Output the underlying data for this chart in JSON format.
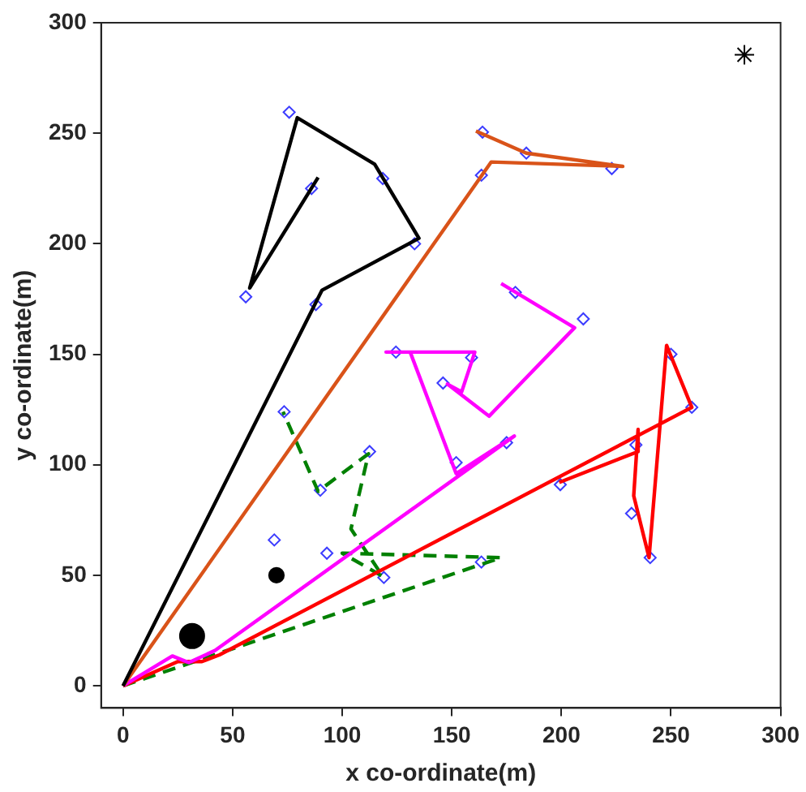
{
  "chart_data": {
    "type": "line",
    "xlabel": "x co-ordinate(m)",
    "ylabel": "y co-ordinate(m)",
    "xlim": [
      -10,
      300
    ],
    "ylim": [
      -10,
      300
    ],
    "xticks": [
      0,
      50,
      100,
      150,
      200,
      250,
      300
    ],
    "yticks": [
      0,
      50,
      100,
      150,
      200,
      250,
      300
    ],
    "grid": false,
    "legend": false,
    "series": [
      {
        "type": "line",
        "color": "#000000",
        "marker": "none",
        "line_style": "solid",
        "x": [
          0,
          90.8,
          135,
          114.8,
          79.5,
          57.8,
          89
        ],
        "values": [
          0,
          179,
          202.5,
          236,
          257,
          180,
          230
        ]
      },
      {
        "type": "line",
        "color": "#d95319",
        "marker": "none",
        "line_style": "solid",
        "x": [
          0,
          168,
          228,
          184,
          161
        ],
        "values": [
          0,
          237,
          235,
          241,
          251
        ]
      },
      {
        "type": "line",
        "color": "#ff00ff",
        "marker": "none",
        "line_style": "solid",
        "x": [
          0,
          22.5,
          30,
          42,
          178.5,
          152,
          131,
          120,
          160.5,
          154.5,
          148,
          167,
          206,
          172.5
        ],
        "values": [
          0,
          13.5,
          10.5,
          16,
          113,
          96,
          151,
          151,
          151,
          133,
          136.5,
          122,
          162,
          182
        ]
      },
      {
        "type": "line",
        "color": "#ff0000",
        "marker": "none",
        "line_style": "solid",
        "x": [
          0,
          25,
          36,
          44,
          259.5,
          248,
          240,
          233,
          235,
          235,
          199
        ],
        "values": [
          0,
          11,
          11,
          14,
          126,
          154,
          58,
          86,
          116,
          106,
          92
        ]
      },
      {
        "type": "line",
        "color": "#008000",
        "marker": "none",
        "line_style": "dashed",
        "x": [
          0,
          172.5,
          100,
          118.5,
          104,
          112,
          89,
          73
        ],
        "values": [
          0,
          58,
          60,
          49.5,
          71,
          105,
          88,
          124
        ]
      },
      {
        "type": "scatter",
        "color": "#3c3cff",
        "marker": "diamond",
        "x": [
          75.8,
          86,
          118.5,
          133,
          56,
          88,
          164,
          184,
          223,
          163.5,
          124.5,
          159,
          146,
          179,
          210,
          175,
          152,
          250,
          259.5,
          234,
          199.5,
          232,
          240.5,
          73.5,
          112.5,
          90,
          69,
          93,
          119,
          163.5
        ],
        "values": [
          259.5,
          225,
          229.5,
          200,
          176,
          172.5,
          250.5,
          241,
          234,
          231,
          151,
          148.5,
          137,
          178,
          166,
          110,
          101,
          150,
          126,
          109,
          91,
          78,
          58,
          124,
          106,
          88.5,
          66,
          60,
          49,
          56
        ]
      },
      {
        "type": "bubble",
        "color": "#000000",
        "marker": "circle",
        "x": [
          31.5,
          70
        ],
        "values": [
          22.5,
          50
        ],
        "sizes": [
          1,
          0.4
        ]
      },
      {
        "type": "scatter",
        "color": "#000000",
        "marker": "cross",
        "x": [
          283.5
        ],
        "values": [
          285.5
        ]
      }
    ]
  }
}
